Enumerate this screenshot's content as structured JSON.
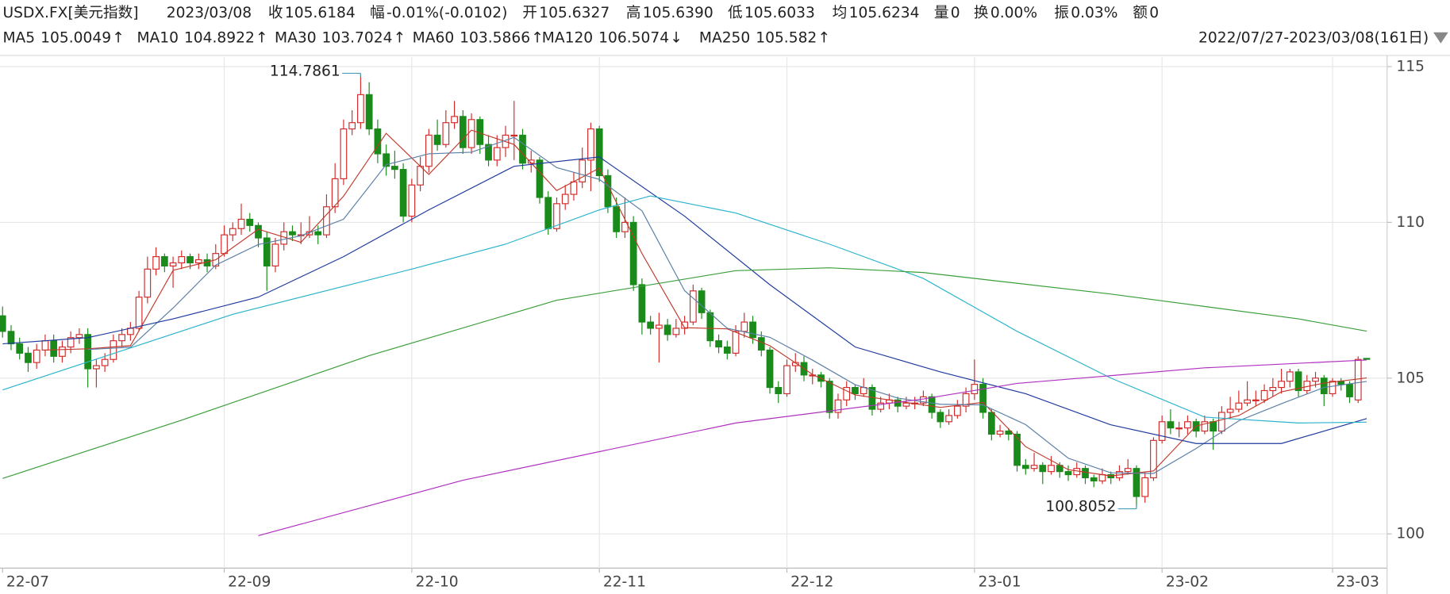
{
  "chart_data": {
    "type": "candlestick",
    "symbol": "USDX.FX[美元指数]",
    "date": "2023/03/08",
    "quote": [
      {
        "label": "收",
        "value": "105.6184",
        "color": "#1a8a1a"
      },
      {
        "label": "幅",
        "value": "-0.01%(-0.0102)",
        "color": "#1a8a1a"
      },
      {
        "label": "开",
        "value": "105.6327",
        "color": "#d42a2a"
      },
      {
        "label": "高",
        "value": "105.6390",
        "color": "#d42a2a"
      },
      {
        "label": "低",
        "value": "105.6033",
        "color": "#1a8a1a"
      },
      {
        "label": "均",
        "value": "105.6234",
        "color": "#1a8a1a"
      },
      {
        "label": "量",
        "value": "0",
        "color": "#222"
      },
      {
        "label": "换",
        "value": "0.00%",
        "color": "#222"
      },
      {
        "label": "振",
        "value": "0.03%",
        "color": "#222"
      },
      {
        "label": "额",
        "value": "0",
        "color": "#222"
      }
    ],
    "range_label": "2022/07/27-2023/03/08(161日)",
    "up_color": "#d42a2a",
    "down_color": "#1a8a1a",
    "xlim": [
      -0.3,
      162.4
    ],
    "ylim": [
      98.9,
      115.3
    ],
    "yticks": [
      100,
      105,
      110,
      115
    ],
    "xticks": [
      {
        "value": 0,
        "label": "22-07"
      },
      {
        "value": 26,
        "label": "22-09"
      },
      {
        "value": 48,
        "label": "22-10"
      },
      {
        "value": 70,
        "label": "22-11"
      },
      {
        "value": 92,
        "label": "22-12"
      },
      {
        "value": 114,
        "label": "23-01"
      },
      {
        "value": 136,
        "label": "23-02"
      },
      {
        "value": 156,
        "label": "23-03"
      }
    ],
    "grid": true,
    "annotations": [
      114.7861,
      100.8052
    ],
    "candles": [
      [
        107.0,
        107.3,
        106.3,
        106.5
      ],
      [
        106.5,
        106.7,
        105.9,
        106.1
      ],
      [
        106.1,
        106.3,
        105.6,
        105.8
      ],
      [
        105.8,
        106.0,
        105.2,
        105.5
      ],
      [
        105.5,
        106.1,
        105.3,
        105.9
      ],
      [
        105.9,
        106.4,
        105.7,
        106.2
      ],
      [
        106.2,
        106.4,
        105.5,
        105.7
      ],
      [
        105.7,
        106.2,
        105.5,
        106.0
      ],
      [
        106.0,
        106.5,
        105.8,
        106.3
      ],
      [
        106.3,
        106.6,
        106.1,
        106.4
      ],
      [
        106.4,
        106.6,
        104.7,
        105.3
      ],
      [
        105.3,
        105.6,
        104.7,
        105.4
      ],
      [
        105.4,
        105.8,
        105.2,
        105.6
      ],
      [
        105.6,
        106.4,
        105.5,
        106.2
      ],
      [
        106.2,
        106.6,
        106.0,
        106.4
      ],
      [
        106.4,
        106.8,
        106.2,
        106.6
      ],
      [
        106.6,
        107.8,
        106.5,
        107.6
      ],
      [
        107.6,
        108.9,
        107.4,
        108.5
      ],
      [
        108.5,
        109.2,
        108.3,
        108.9
      ],
      [
        108.9,
        109.0,
        108.4,
        108.6
      ],
      [
        108.6,
        108.9,
        107.9,
        108.7
      ],
      [
        108.7,
        109.1,
        108.5,
        108.9
      ],
      [
        108.9,
        109.0,
        108.5,
        108.7
      ],
      [
        108.7,
        109.0,
        108.5,
        108.8
      ],
      [
        108.8,
        109.0,
        108.4,
        108.6
      ],
      [
        108.6,
        109.3,
        108.5,
        109.0
      ],
      [
        109.0,
        109.9,
        108.9,
        109.6
      ],
      [
        109.6,
        110.0,
        109.4,
        109.8
      ],
      [
        109.8,
        110.6,
        109.6,
        110.1
      ],
      [
        110.1,
        110.3,
        109.7,
        109.9
      ],
      [
        109.9,
        110.0,
        109.2,
        109.5
      ],
      [
        109.5,
        109.7,
        107.8,
        108.6
      ],
      [
        108.6,
        109.5,
        108.4,
        109.3
      ],
      [
        109.3,
        110.0,
        109.1,
        109.7
      ],
      [
        109.7,
        109.9,
        109.4,
        109.6
      ],
      [
        109.6,
        110.0,
        109.3,
        109.6
      ],
      [
        109.6,
        110.2,
        109.5,
        109.7
      ],
      [
        109.7,
        109.9,
        109.3,
        109.6
      ],
      [
        109.6,
        110.9,
        109.5,
        110.5
      ],
      [
        110.5,
        111.9,
        110.3,
        111.4
      ],
      [
        111.4,
        113.3,
        111.2,
        113.0
      ],
      [
        113.0,
        113.6,
        112.8,
        113.2
      ],
      [
        113.2,
        114.7861,
        113.0,
        114.1
      ],
      [
        114.1,
        114.5,
        112.8,
        113.0
      ],
      [
        113.0,
        113.3,
        111.9,
        112.2
      ],
      [
        112.2,
        112.5,
        111.5,
        111.8
      ],
      [
        111.8,
        112.3,
        111.4,
        111.7
      ],
      [
        111.7,
        111.9,
        110.0,
        110.2
      ],
      [
        110.2,
        111.4,
        110.0,
        111.2
      ],
      [
        111.2,
        112.1,
        111.0,
        111.8
      ],
      [
        111.8,
        113.0,
        111.6,
        112.8
      ],
      [
        112.8,
        113.3,
        112.3,
        112.5
      ],
      [
        112.5,
        113.6,
        112.4,
        113.2
      ],
      [
        113.2,
        113.9,
        113.0,
        113.4
      ],
      [
        113.4,
        113.6,
        112.2,
        112.4
      ],
      [
        112.4,
        113.5,
        112.2,
        113.3
      ],
      [
        113.3,
        113.4,
        112.2,
        112.5
      ],
      [
        112.5,
        112.8,
        111.8,
        112.0
      ],
      [
        112.0,
        112.8,
        111.8,
        112.4
      ],
      [
        112.4,
        113.1,
        112.1,
        112.8
      ],
      [
        112.8,
        113.9,
        112.0,
        112.8
      ],
      [
        112.8,
        113.0,
        111.7,
        111.9
      ],
      [
        111.9,
        112.3,
        111.6,
        112.0
      ],
      [
        112.0,
        112.1,
        110.6,
        110.8
      ],
      [
        110.8,
        111.0,
        109.6,
        109.8
      ],
      [
        109.8,
        110.8,
        109.7,
        110.6
      ],
      [
        110.6,
        111.2,
        110.4,
        110.9
      ],
      [
        110.9,
        111.6,
        110.7,
        111.3
      ],
      [
        111.3,
        112.4,
        111.1,
        112.0
      ],
      [
        112.0,
        113.2,
        111.0,
        113.0
      ],
      [
        113.0,
        113.1,
        111.3,
        111.5
      ],
      [
        111.5,
        111.7,
        110.3,
        110.5
      ],
      [
        110.5,
        110.8,
        109.5,
        109.7
      ],
      [
        109.7,
        110.8,
        109.5,
        110.0
      ],
      [
        110.0,
        110.2,
        107.8,
        108.0
      ],
      [
        108.0,
        108.2,
        106.4,
        106.8
      ],
      [
        106.8,
        107.0,
        106.4,
        106.6
      ],
      [
        106.6,
        107.1,
        105.5,
        106.7
      ],
      [
        106.7,
        106.9,
        106.2,
        106.4
      ],
      [
        106.4,
        106.9,
        106.3,
        106.6
      ],
      [
        106.6,
        107.0,
        106.4,
        106.8
      ],
      [
        106.8,
        108.0,
        106.7,
        107.8
      ],
      [
        107.8,
        107.9,
        106.9,
        107.1
      ],
      [
        107.1,
        107.2,
        106.0,
        106.2
      ],
      [
        106.2,
        106.4,
        105.8,
        106.0
      ],
      [
        106.0,
        106.2,
        105.6,
        105.8
      ],
      [
        105.8,
        106.7,
        105.7,
        106.5
      ],
      [
        106.5,
        107.1,
        106.3,
        106.8
      ],
      [
        106.8,
        107.0,
        106.1,
        106.3
      ],
      [
        106.3,
        106.5,
        105.7,
        105.9
      ],
      [
        105.9,
        106.0,
        104.5,
        104.7
      ],
      [
        104.7,
        104.9,
        104.2,
        104.5
      ],
      [
        104.5,
        105.6,
        104.4,
        105.4
      ],
      [
        105.4,
        105.8,
        105.2,
        105.5
      ],
      [
        105.5,
        105.7,
        104.9,
        105.1
      ],
      [
        105.1,
        105.3,
        104.8,
        105.1
      ],
      [
        105.1,
        105.2,
        104.7,
        104.9
      ],
      [
        104.9,
        105.0,
        103.7,
        103.9
      ],
      [
        103.9,
        104.5,
        103.7,
        104.3
      ],
      [
        104.3,
        104.9,
        104.1,
        104.7
      ],
      [
        104.7,
        104.8,
        104.3,
        104.5
      ],
      [
        104.5,
        105.0,
        104.4,
        104.7
      ],
      [
        104.7,
        104.8,
        103.8,
        104.0
      ],
      [
        104.0,
        104.4,
        103.9,
        104.2
      ],
      [
        104.2,
        104.5,
        104.0,
        104.3
      ],
      [
        104.3,
        104.4,
        103.9,
        104.1
      ],
      [
        104.1,
        104.4,
        104.0,
        104.2
      ],
      [
        104.2,
        104.4,
        104.0,
        104.2
      ],
      [
        104.2,
        104.6,
        104.1,
        104.4
      ],
      [
        104.4,
        104.5,
        103.7,
        103.9
      ],
      [
        103.9,
        104.0,
        103.4,
        103.6
      ],
      [
        103.6,
        104.0,
        103.5,
        103.8
      ],
      [
        103.8,
        104.3,
        103.7,
        104.1
      ],
      [
        104.1,
        104.7,
        103.9,
        104.5
      ],
      [
        104.5,
        105.6,
        104.3,
        104.8
      ],
      [
        104.8,
        105.0,
        103.7,
        103.9
      ],
      [
        103.9,
        104.0,
        103.0,
        103.2
      ],
      [
        103.2,
        103.5,
        103.1,
        103.3
      ],
      [
        103.3,
        103.4,
        103.0,
        103.2
      ],
      [
        103.2,
        103.3,
        102.0,
        102.2
      ],
      [
        102.2,
        102.4,
        101.9,
        102.1
      ],
      [
        102.1,
        102.6,
        102.0,
        102.2
      ],
      [
        102.2,
        102.3,
        101.6,
        102.0
      ],
      [
        102.0,
        102.5,
        101.9,
        102.2
      ],
      [
        102.2,
        102.3,
        101.8,
        102.0
      ],
      [
        102.0,
        102.2,
        101.7,
        101.9
      ],
      [
        101.9,
        102.3,
        101.8,
        102.1
      ],
      [
        102.1,
        102.2,
        101.6,
        101.8
      ],
      [
        101.8,
        101.9,
        101.5,
        101.7
      ],
      [
        101.7,
        102.1,
        101.6,
        101.9
      ],
      [
        101.9,
        102.0,
        101.6,
        101.8
      ],
      [
        101.8,
        102.2,
        101.7,
        102.0
      ],
      [
        102.0,
        102.4,
        101.9,
        102.1
      ],
      [
        102.1,
        102.2,
        100.8052,
        101.2
      ],
      [
        101.2,
        102.0,
        101.0,
        101.8
      ],
      [
        101.8,
        103.1,
        101.7,
        103.0
      ],
      [
        103.0,
        103.8,
        102.9,
        103.6
      ],
      [
        103.6,
        104.0,
        103.2,
        103.4
      ],
      [
        103.4,
        103.6,
        103.1,
        103.4
      ],
      [
        103.4,
        103.8,
        103.2,
        103.6
      ],
      [
        103.6,
        103.7,
        103.1,
        103.3
      ],
      [
        103.3,
        103.8,
        103.2,
        103.6
      ],
      [
        103.6,
        103.7,
        102.7,
        103.3
      ],
      [
        103.3,
        104.1,
        103.2,
        103.9
      ],
      [
        103.9,
        104.4,
        103.7,
        104.0
      ],
      [
        104.0,
        104.6,
        103.9,
        104.2
      ],
      [
        104.2,
        104.9,
        104.1,
        104.3
      ],
      [
        104.3,
        104.6,
        104.1,
        104.3
      ],
      [
        104.3,
        104.8,
        104.2,
        104.6
      ],
      [
        104.6,
        105.0,
        104.4,
        104.7
      ],
      [
        104.7,
        105.3,
        104.5,
        104.9
      ],
      [
        104.9,
        105.3,
        104.7,
        105.2
      ],
      [
        105.2,
        105.3,
        104.4,
        104.6
      ],
      [
        104.6,
        105.1,
        104.5,
        104.9
      ],
      [
        104.9,
        105.2,
        104.7,
        105.0
      ],
      [
        105.0,
        105.1,
        104.1,
        104.5
      ],
      [
        104.5,
        105.0,
        104.4,
        104.9
      ],
      [
        104.9,
        105.0,
        104.6,
        104.8
      ],
      [
        104.8,
        104.9,
        104.2,
        104.4
      ],
      [
        104.3,
        105.7,
        104.2,
        105.6
      ],
      [
        105.6327,
        105.639,
        105.6033,
        105.6184
      ]
    ],
    "series": [
      {
        "name": "MA5",
        "color": "#c0392b",
        "legend_value": 105.0049,
        "trend": "↑",
        "x": [
          5,
          10,
          15,
          20,
          25,
          30,
          35,
          40,
          45,
          50,
          55,
          60,
          65,
          70,
          75,
          80,
          85,
          90,
          95,
          100,
          105,
          110,
          115,
          120,
          125,
          130,
          135,
          140,
          145,
          150,
          155,
          160
        ],
        "values": [
          105.9,
          105.94,
          106.04,
          108.46,
          108.8,
          109.78,
          109.36,
          110.84,
          112.86,
          111.54,
          112.96,
          112.5,
          111.02,
          111.74,
          109.0,
          106.62,
          106.58,
          106.04,
          105.12,
          104.46,
          104.26,
          104.06,
          104.22,
          102.8,
          102.06,
          101.86,
          102.02,
          103.46,
          103.8,
          104.56,
          104.84,
          105.0049
        ]
      },
      {
        "name": "MA10",
        "color": "#5b7fa6",
        "legend_value": 104.8922,
        "trend": "↑",
        "x": [
          10,
          15,
          20,
          25,
          30,
          35,
          40,
          45,
          50,
          55,
          60,
          65,
          70,
          75,
          80,
          85,
          90,
          95,
          100,
          105,
          110,
          115,
          120,
          125,
          130,
          135,
          140,
          145,
          150,
          155,
          160
        ],
        "values": [
          105.92,
          105.99,
          107.25,
          108.63,
          109.29,
          109.57,
          110.1,
          111.85,
          112.2,
          112.25,
          112.73,
          111.76,
          111.38,
          110.37,
          107.81,
          106.6,
          106.31,
          105.58,
          104.79,
          104.36,
          104.16,
          104.14,
          103.51,
          102.43,
          101.96,
          101.94,
          102.74,
          103.63,
          104.18,
          104.7,
          104.8922
        ]
      },
      {
        "name": "MA30",
        "color": "#1f3a9e",
        "legend_value": 103.7024,
        "trend": "↑",
        "x": [
          0,
          10,
          20,
          30,
          40,
          50,
          60,
          70,
          80,
          90,
          100,
          110,
          120,
          130,
          140,
          150,
          160
        ],
        "values": [
          106.1,
          106.3,
          106.9,
          107.6,
          108.9,
          110.4,
          111.8,
          112.1,
          110.2,
          108.0,
          106.0,
          105.2,
          104.5,
          103.5,
          102.9,
          102.9,
          103.7024
        ]
      },
      {
        "name": "MA60",
        "color": "#2ab3cc",
        "legend_value": 103.5866,
        "trend": "↑",
        "x": [
          0,
          27,
          48,
          59,
          70,
          76,
          86,
          97,
          108,
          119,
          130,
          141,
          152,
          160
        ],
        "values": [
          104.62,
          107.05,
          108.5,
          109.3,
          110.4,
          110.85,
          110.3,
          109.3,
          108.2,
          106.5,
          105.0,
          103.75,
          103.56,
          103.5866
        ]
      },
      {
        "name": "MA120",
        "color": "#3a9e3a",
        "legend_value": 106.5074,
        "trend": "↓",
        "x": [
          0,
          21,
          43,
          65,
          86,
          97,
          108,
          130,
          152,
          160
        ],
        "values": [
          101.78,
          103.65,
          105.72,
          107.5,
          108.45,
          108.54,
          108.39,
          107.7,
          106.9,
          106.5074
        ]
      },
      {
        "name": "MA250",
        "color": "#b030c0",
        "legend_value": 105.582,
        "trend": "↑",
        "x": [
          30,
          54,
          86,
          108,
          119,
          141,
          160
        ],
        "values": [
          99.94,
          101.72,
          103.56,
          104.33,
          104.83,
          105.33,
          105.582
        ]
      }
    ]
  }
}
